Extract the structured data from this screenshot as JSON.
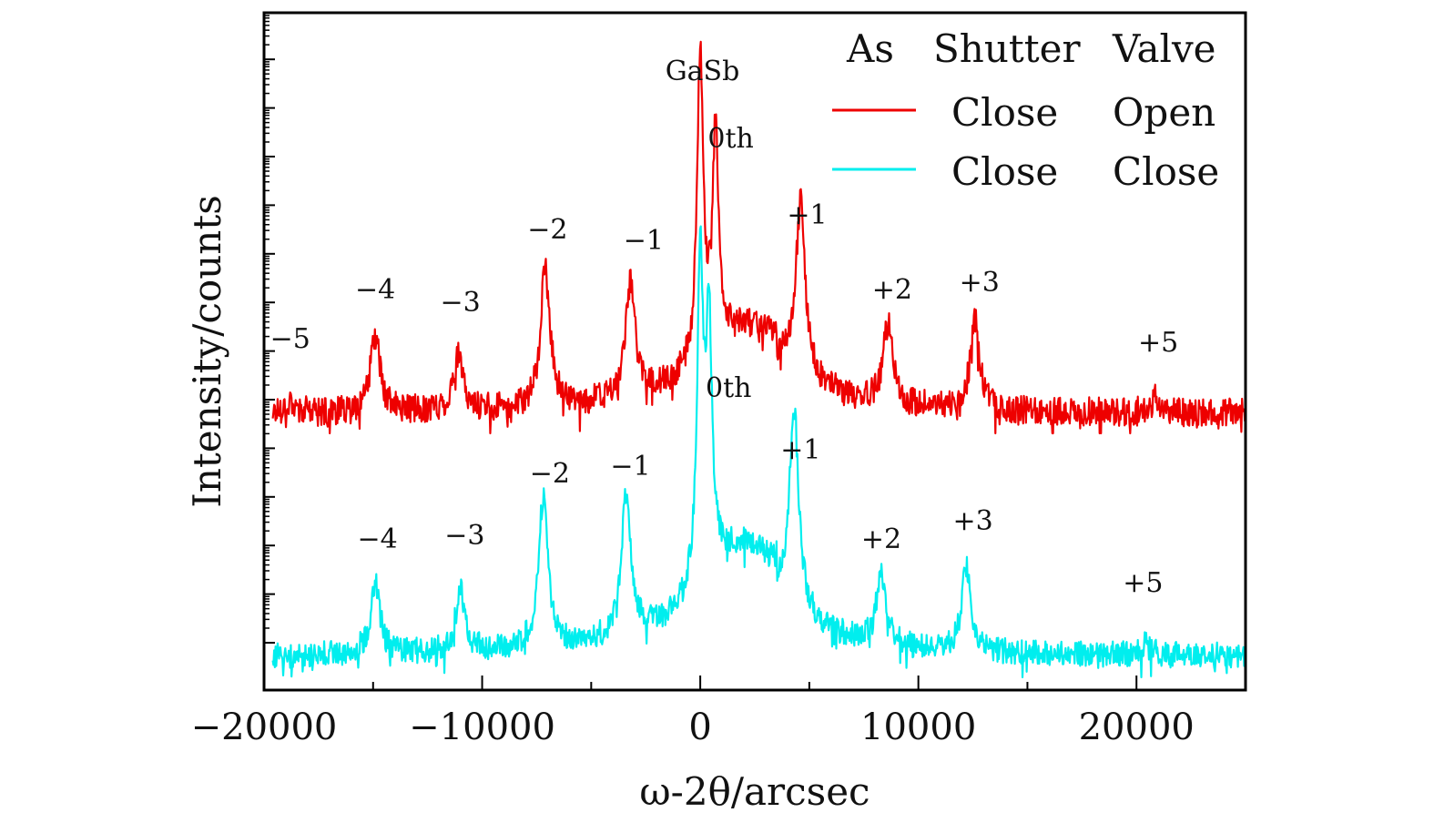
{
  "chart_data": {
    "type": "line",
    "xlabel": "ω-2θ/arcsec",
    "ylabel": "Intensity/counts",
    "xlim": [
      -20000,
      25000
    ],
    "x_ticks": [
      -20000,
      -10000,
      0,
      10000,
      20000
    ],
    "x_tick_labels": [
      "−20000",
      "−10000",
      "0",
      "10000",
      "20000"
    ],
    "y_scale": "log (arbitrary, curves vertically offset)",
    "legend": {
      "header": [
        "As",
        "Shutter",
        "Valve"
      ],
      "entries": [
        {
          "series": "red",
          "shutter": "Close",
          "valve": "Open"
        },
        {
          "series": "cyan",
          "shutter": "Close",
          "valve": "Close"
        }
      ]
    },
    "series": [
      {
        "name": "As Shutter Close, Valve Open",
        "color": "#ee0000",
        "baseline": 0.075,
        "noise": 0.055,
        "peaks": [
          {
            "label": "−5",
            "x": -18800,
            "height": 0.12
          },
          {
            "label": "−4",
            "x": -14900,
            "height": 0.37
          },
          {
            "label": "−3",
            "x": -11100,
            "height": 0.28
          },
          {
            "label": "−2",
            "x": -7100,
            "height": 0.62
          },
          {
            "label": "−1",
            "x": -3200,
            "height": 0.52
          },
          {
            "label": "GaSb",
            "x": 0,
            "height": 1.26
          },
          {
            "label": "0th",
            "x": 700,
            "height": 0.9
          },
          {
            "label": "+1",
            "x": 4600,
            "height": 0.75
          },
          {
            "label": "+2",
            "x": 8600,
            "height": 0.38
          },
          {
            "label": "+3",
            "x": 12600,
            "height": 0.42
          },
          {
            "label": "+5",
            "x": 20800,
            "height": 0.13
          }
        ]
      },
      {
        "name": "As Shutter Close, Valve Close",
        "color": "#00eeee",
        "baseline": 0.08,
        "noise": 0.05,
        "peaks": [
          {
            "label": "−4",
            "x": -14900,
            "height": 0.35
          },
          {
            "label": "−3",
            "x": -11000,
            "height": 0.31
          },
          {
            "label": "−2",
            "x": -7200,
            "height": 0.66
          },
          {
            "label": "−1",
            "x": -3400,
            "height": 0.62
          },
          {
            "label": "",
            "x": 0,
            "height": 1.3
          },
          {
            "label": "0th",
            "x": 400,
            "height": 1.0
          },
          {
            "label": "+1",
            "x": 4300,
            "height": 0.86
          },
          {
            "label": "+2",
            "x": 8300,
            "height": 0.35
          },
          {
            "label": "+3",
            "x": 12200,
            "height": 0.4
          },
          {
            "label": "+5",
            "x": 20400,
            "height": 0.12
          }
        ]
      }
    ],
    "annotations": {
      "red": [
        {
          "text": "−5",
          "x": -18800
        },
        {
          "text": "−4",
          "x": -14900
        },
        {
          "text": "−3",
          "x": -11000
        },
        {
          "text": "−2",
          "x": -7000
        },
        {
          "text": "−1",
          "x": -2600
        },
        {
          "text": "GaSb",
          "x": 100
        },
        {
          "text": "0th",
          "x": 1400
        },
        {
          "text": "+1",
          "x": 4900
        },
        {
          "text": "+2",
          "x": 8800
        },
        {
          "text": "+3",
          "x": 12800
        },
        {
          "text": "+5",
          "x": 21000
        }
      ],
      "cyan": [
        {
          "text": "−4",
          "x": -14800
        },
        {
          "text": "−3",
          "x": -10800
        },
        {
          "text": "−2",
          "x": -6900
        },
        {
          "text": "−1",
          "x": -3200
        },
        {
          "text": "0th",
          "x": 1300
        },
        {
          "text": "+1",
          "x": 4600
        },
        {
          "text": "+2",
          "x": 8300
        },
        {
          "text": "+3",
          "x": 12500
        },
        {
          "text": "+5",
          "x": 20300
        }
      ]
    }
  }
}
